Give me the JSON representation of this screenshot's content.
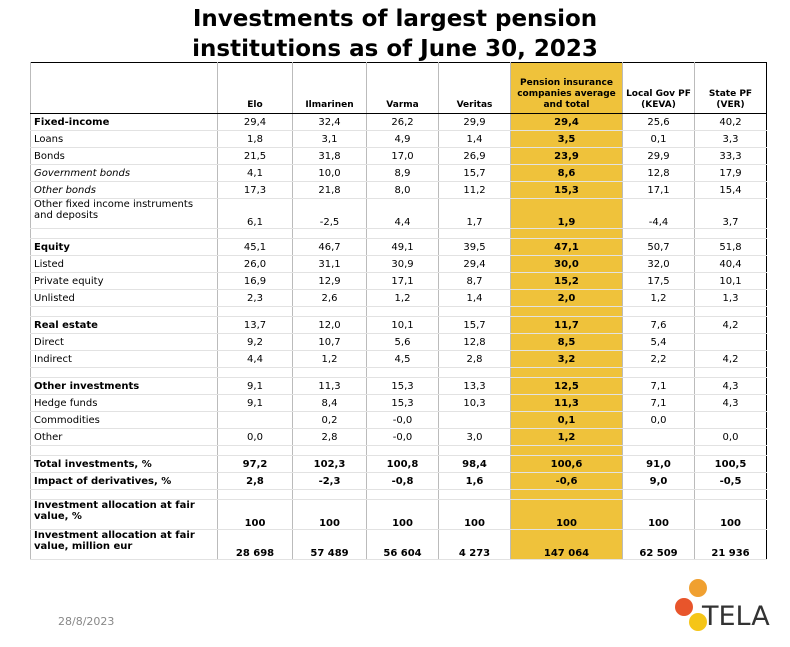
{
  "title": "Investments of largest pension institutions as of June 30, 2023",
  "table": {
    "columns": [
      "Elo",
      "Ilmarinen",
      "Varma",
      "Veritas",
      "Pension insurance companies average and total",
      "Local Gov PF (KEVA)",
      "State PF (VER)"
    ],
    "highlight_column": 4,
    "groups": [
      {
        "rows": [
          {
            "label": "Fixed-income",
            "bold": true,
            "values": [
              "29,4",
              "32,4",
              "26,2",
              "29,9",
              "29,4",
              "25,6",
              "40,2"
            ]
          },
          {
            "label": "Loans",
            "values": [
              "1,8",
              "3,1",
              "4,9",
              "1,4",
              "3,5",
              "0,1",
              "3,3"
            ]
          },
          {
            "label": "Bonds",
            "values": [
              "21,5",
              "31,8",
              "17,0",
              "26,9",
              "23,9",
              "29,9",
              "33,3"
            ]
          },
          {
            "label": "Government bonds",
            "italic": true,
            "values": [
              "4,1",
              "10,0",
              "8,9",
              "15,7",
              "8,6",
              "12,8",
              "17,9"
            ]
          },
          {
            "label": "Other bonds",
            "italic": true,
            "values": [
              "17,3",
              "21,8",
              "8,0",
              "11,2",
              "15,3",
              "17,1",
              "15,4"
            ]
          },
          {
            "label": "Other fixed income instruments and deposits",
            "values": [
              "6,1",
              "-2,5",
              "4,4",
              "1,7",
              "1,9",
              "-4,4",
              "3,7"
            ]
          }
        ]
      },
      {
        "rows": [
          {
            "label": "Equity",
            "bold": true,
            "values": [
              "45,1",
              "46,7",
              "49,1",
              "39,5",
              "47,1",
              "50,7",
              "51,8"
            ]
          },
          {
            "label": "Listed",
            "values": [
              "26,0",
              "31,1",
              "30,9",
              "29,4",
              "30,0",
              "32,0",
              "40,4"
            ]
          },
          {
            "label": "Private equity",
            "values": [
              "16,9",
              "12,9",
              "17,1",
              "8,7",
              "15,2",
              "17,5",
              "10,1"
            ]
          },
          {
            "label": "Unlisted",
            "values": [
              "2,3",
              "2,6",
              "1,2",
              "1,4",
              "2,0",
              "1,2",
              "1,3"
            ]
          }
        ]
      },
      {
        "rows": [
          {
            "label": "Real estate",
            "bold": true,
            "values": [
              "13,7",
              "12,0",
              "10,1",
              "15,7",
              "11,7",
              "7,6",
              "4,2"
            ]
          },
          {
            "label": "Direct",
            "values": [
              "9,2",
              "10,7",
              "5,6",
              "12,8",
              "8,5",
              "5,4",
              null
            ]
          },
          {
            "label": "Indirect",
            "values": [
              "4,4",
              "1,2",
              "4,5",
              "2,8",
              "3,2",
              "2,2",
              "4,2"
            ]
          }
        ]
      },
      {
        "rows": [
          {
            "label": "Other investments",
            "bold": true,
            "values": [
              "9,1",
              "11,3",
              "15,3",
              "13,3",
              "12,5",
              "7,1",
              "4,3"
            ]
          },
          {
            "label": "Hedge funds",
            "values": [
              "9,1",
              "8,4",
              "15,3",
              "10,3",
              "11,3",
              "7,1",
              "4,3"
            ]
          },
          {
            "label": "Commodities",
            "values": [
              null,
              "0,2",
              "-0,0",
              null,
              "0,1",
              "0,0",
              null
            ]
          },
          {
            "label": "Other",
            "values": [
              "0,0",
              "2,8",
              "-0,0",
              "3,0",
              "1,2",
              null,
              "0,0"
            ]
          }
        ]
      },
      {
        "rows": [
          {
            "label": "Total investments, %",
            "bold": true,
            "values": [
              "97,2",
              "102,3",
              "100,8",
              "98,4",
              "100,6",
              "91,0",
              "100,5"
            ]
          },
          {
            "label": "Impact of derivatives, %",
            "bold": true,
            "values": [
              "2,8",
              "-2,3",
              "-0,8",
              "1,6",
              "-0,6",
              "9,0",
              "-0,5"
            ]
          }
        ]
      },
      {
        "rows": [
          {
            "label": "Investment allocation at fair value, %",
            "bold": true,
            "values": [
              "100",
              "100",
              "100",
              "100",
              "100",
              "100",
              "100"
            ]
          },
          {
            "label": "Investment allocation at fair value, million eur",
            "bold": true,
            "values": [
              "28 698",
              "57 489",
              "56 604",
              "4 273",
              "147 064",
              "62 509",
              "21 936"
            ]
          }
        ]
      }
    ]
  },
  "footer": {
    "date": "28/8/2023",
    "logo": "TELA"
  }
}
